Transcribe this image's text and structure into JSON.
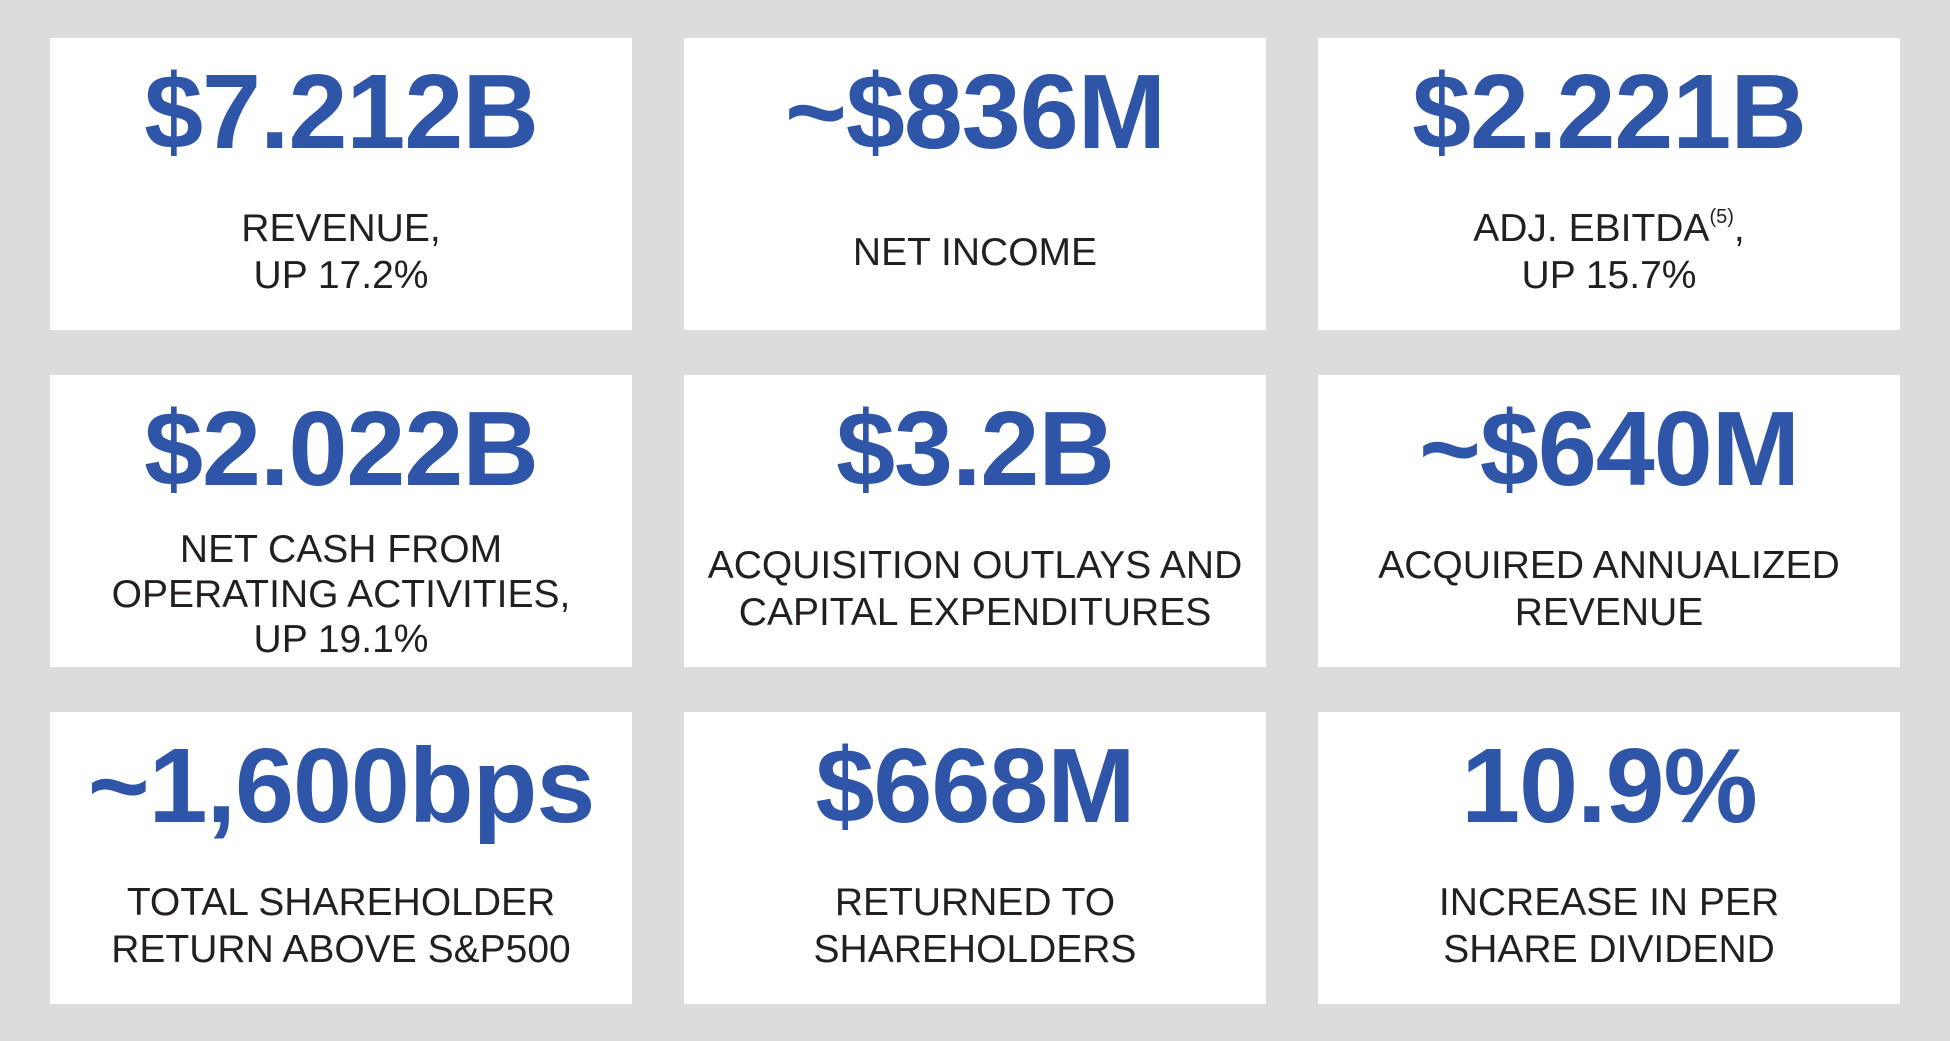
{
  "colors": {
    "background": "#dcdcde",
    "card": "#ffffff",
    "metric": "#2e55a8",
    "caption": "#231f20"
  },
  "cards": [
    {
      "value": "$7.212B",
      "caption": [
        "REVENUE,",
        "UP 17.2%"
      ]
    },
    {
      "value": "~$836M",
      "caption": [
        "NET INCOME"
      ]
    },
    {
      "value": "$2.221B",
      "caption_line1": "ADJ. EBITDA",
      "footnote": "(5)",
      "caption_line1_suffix": ",",
      "caption": [
        "UP 15.7%"
      ]
    },
    {
      "value": "$2.022B",
      "caption": [
        "NET CASH FROM",
        "OPERATING ACTIVITIES,",
        "UP 19.1%"
      ]
    },
    {
      "value": "$3.2B",
      "caption": [
        "ACQUISITION OUTLAYS AND",
        "CAPITAL EXPENDITURES"
      ]
    },
    {
      "value": "~$640M",
      "caption": [
        "ACQUIRED ANNUALIZED",
        "REVENUE"
      ]
    },
    {
      "value": "~1,600bps",
      "caption": [
        "TOTAL SHAREHOLDER",
        "RETURN ABOVE S&P500"
      ]
    },
    {
      "value": "$668M",
      "caption": [
        "RETURNED TO",
        "SHAREHOLDERS"
      ]
    },
    {
      "value": "10.9%",
      "caption": [
        "INCREASE IN PER",
        "SHARE DIVIDEND"
      ]
    }
  ]
}
